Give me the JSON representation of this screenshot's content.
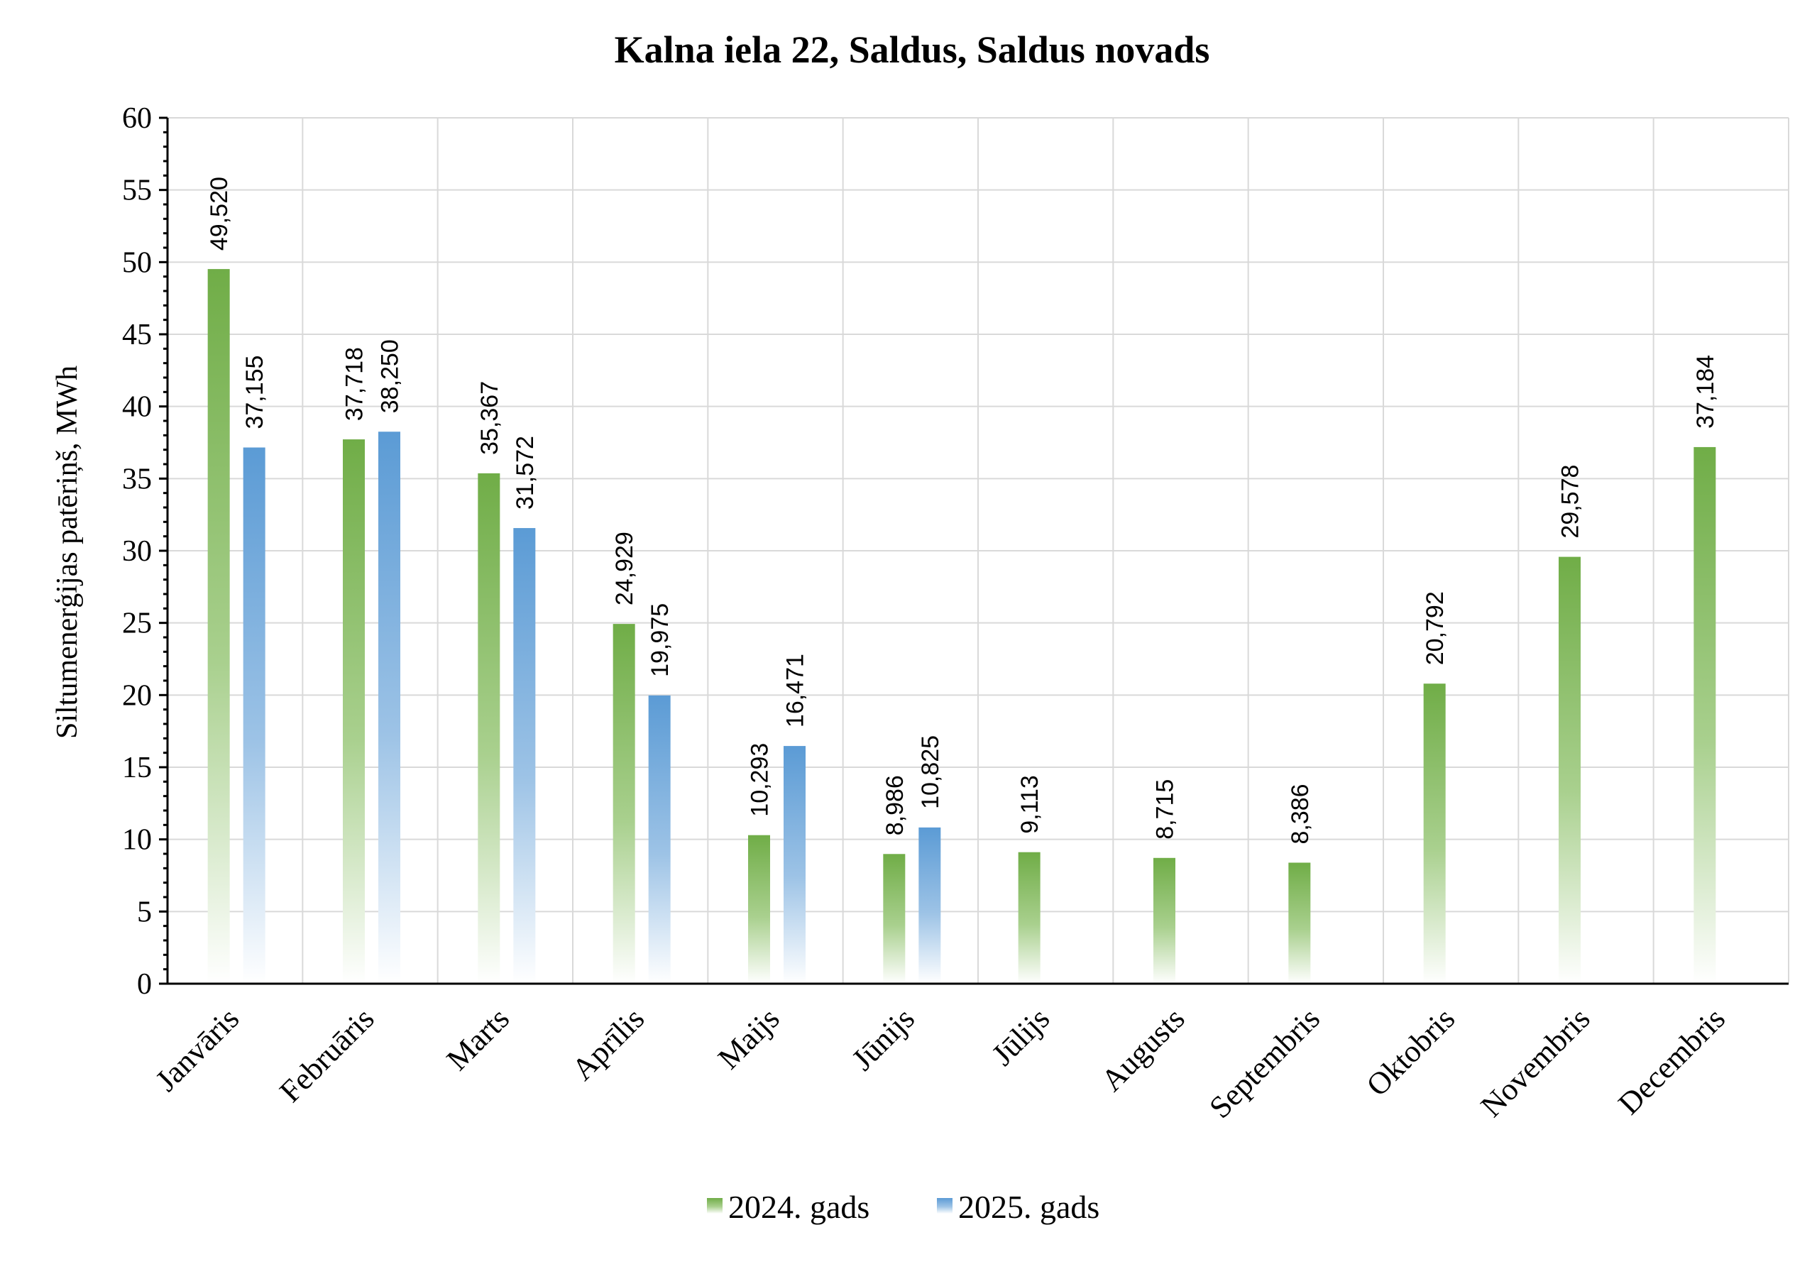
{
  "chart_data": {
    "type": "bar",
    "title": "Kalna iela 22, Saldus, Saldus novads",
    "xlabel": "",
    "ylabel": "Siltumenerģijas patēriņš, MWh",
    "ylim": [
      0,
      60
    ],
    "yticks": [
      0,
      5,
      10,
      15,
      20,
      25,
      30,
      35,
      40,
      45,
      50,
      55,
      60
    ],
    "grid": true,
    "legend_position": "bottom",
    "categories": [
      "Janvāris",
      "Februāris",
      "Marts",
      "Aprīlis",
      "Maijs",
      "Jūnijs",
      "Jūlijs",
      "Augusts",
      "Septembris",
      "Oktobris",
      "Novembris",
      "Decembris"
    ],
    "series": [
      {
        "name": "2024. gads",
        "color": "#70ad47",
        "values": [
          49.52,
          37.718,
          35.367,
          24.929,
          10.293,
          8.986,
          9.113,
          8.715,
          8.386,
          20.792,
          29.578,
          37.184
        ],
        "labels": [
          "49,520",
          "37,718",
          "35,367",
          "24,929",
          "10,293",
          "8,986",
          "9,113",
          "8,715",
          "8,386",
          "20,792",
          "29,578",
          "37,184"
        ]
      },
      {
        "name": "2025. gads",
        "color": "#5b9bd5",
        "values": [
          37.155,
          38.25,
          31.572,
          19.975,
          16.471,
          10.825,
          null,
          null,
          null,
          null,
          null,
          null
        ],
        "labels": [
          "37,155",
          "38,250",
          "31,572",
          "19,975",
          "16,471",
          "10,825",
          null,
          null,
          null,
          null,
          null,
          null
        ]
      }
    ]
  }
}
